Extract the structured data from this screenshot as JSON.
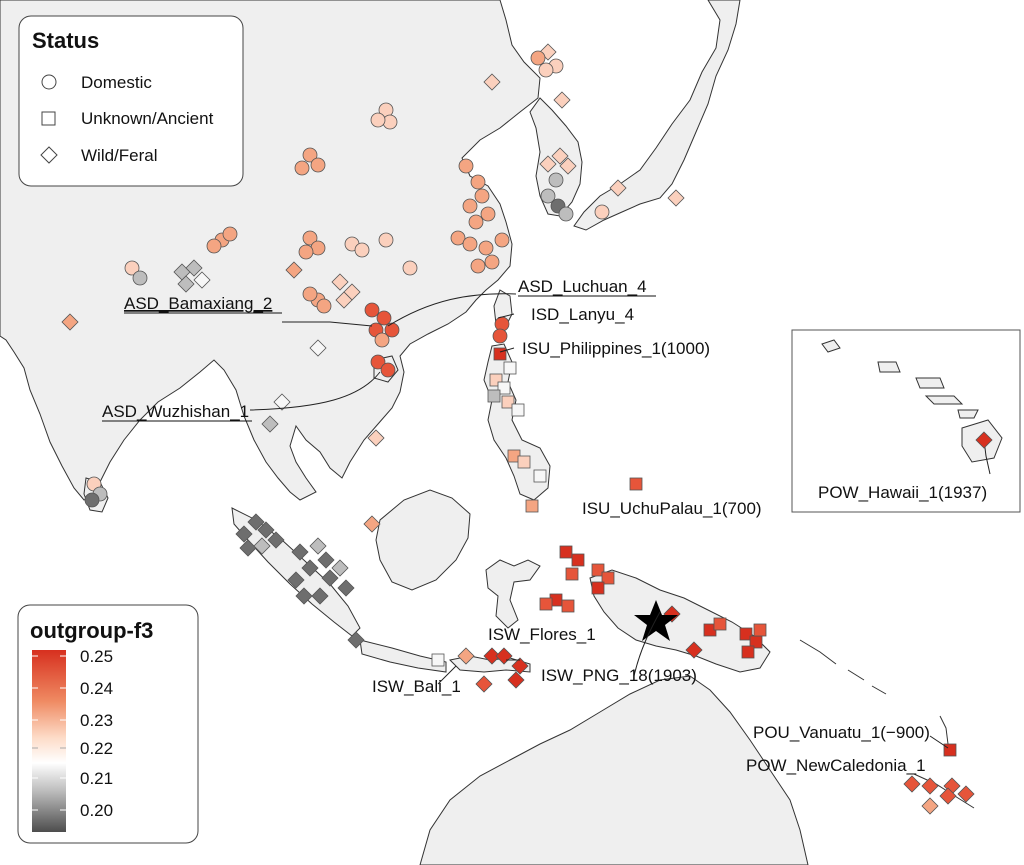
{
  "status_legend": {
    "title": "Status",
    "items": [
      {
        "shape": "circle",
        "label": "Domestic"
      },
      {
        "shape": "square",
        "label": "Unknown/Ancient"
      },
      {
        "shape": "diamond",
        "label": "Wild/Feral"
      }
    ]
  },
  "color_legend": {
    "title": "outgroup-f3",
    "ticks": [
      "0.25",
      "0.24",
      "0.23",
      "0.22",
      "0.21",
      "0.20"
    ],
    "range": [
      0.195,
      0.25
    ],
    "colors": {
      "high": "#d7301f",
      "mid": "#ffffff",
      "low": "#4d4d4d"
    }
  },
  "labels": [
    {
      "id": "bamaxiang",
      "text": "ASD_Bamaxiang_2",
      "underline": true
    },
    {
      "id": "luchuan",
      "text": "ASD_Luchuan_4",
      "underline": true
    },
    {
      "id": "lanyu",
      "text": "ISD_Lanyu_4"
    },
    {
      "id": "philippines",
      "text": "ISU_Philippines_1(1000)"
    },
    {
      "id": "wuzhishan",
      "text": "ASD_Wuzhishan_1",
      "underline": true
    },
    {
      "id": "uchupalau",
      "text": "ISU_UchuPalau_1(700)"
    },
    {
      "id": "hawaii",
      "text": "POW_Hawaii_1(1937)"
    },
    {
      "id": "flores",
      "text": "ISW_Flores_1"
    },
    {
      "id": "png",
      "text": "ISW_PNG_18(1903)"
    },
    {
      "id": "bali",
      "text": "ISW_Bali_1"
    },
    {
      "id": "vanuatu",
      "text": "POU_Vanuatu_1(−900)"
    },
    {
      "id": "newcaledonia",
      "text": "POW_NewCaledonia_1"
    }
  ]
}
